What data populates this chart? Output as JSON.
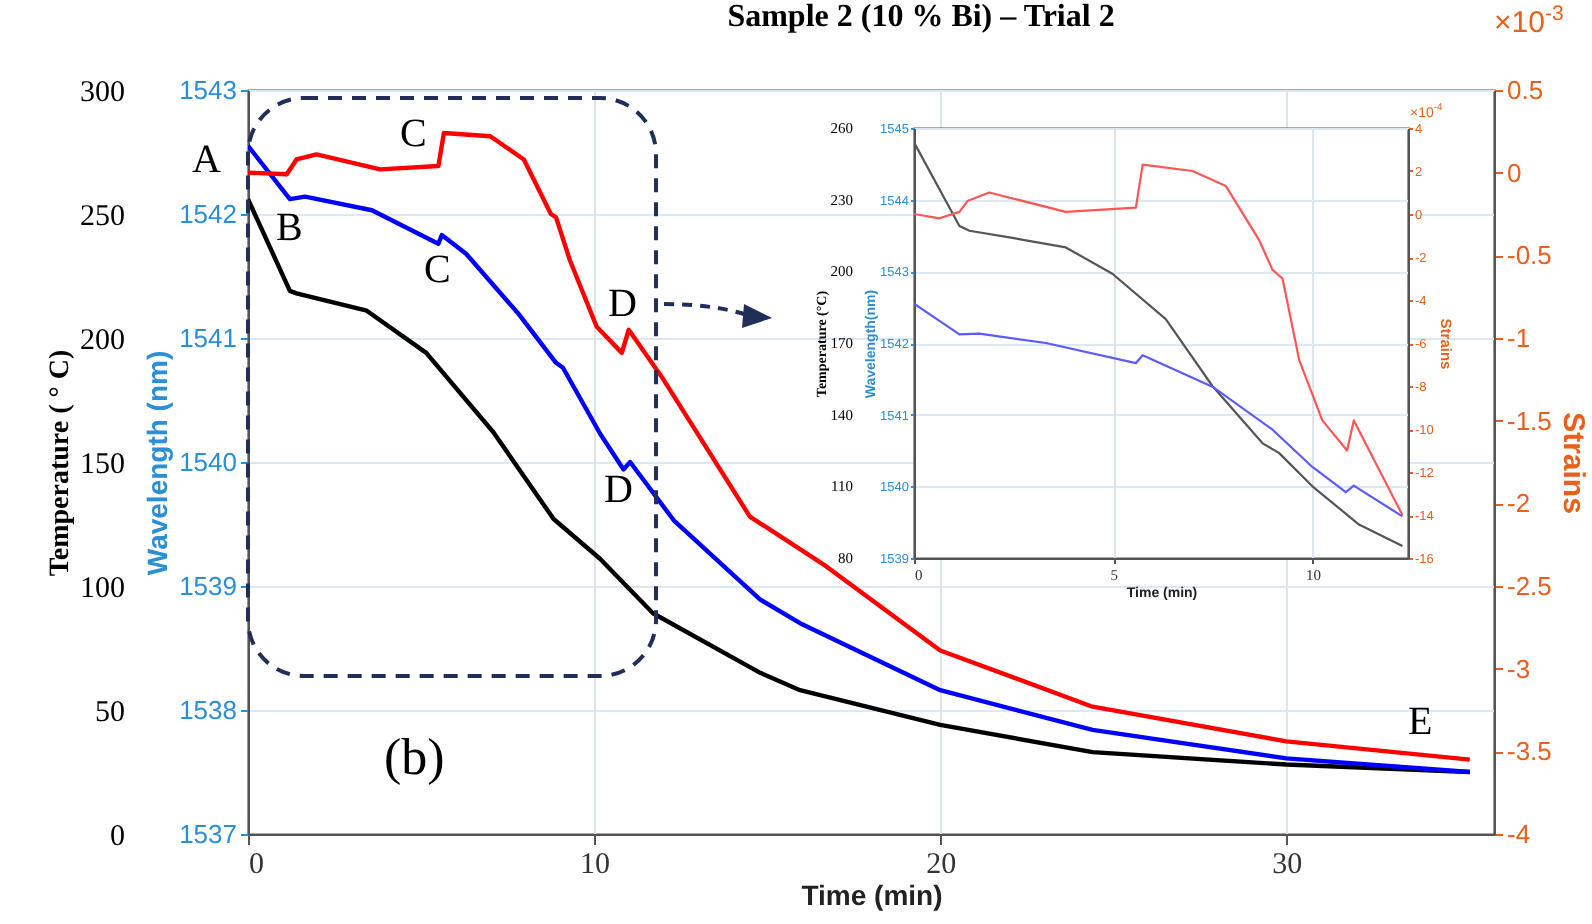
{
  "chart_data": [
    {
      "type": "line",
      "title": "Sample 2 (10 % Bi) – Trial 2",
      "xlabel": "Time (min)",
      "ylabel": "Temperature ( ° C)",
      "y2label": "Wavelength (nm)",
      "y3label": "Strains",
      "xlim": [
        0,
        36
      ],
      "xticks": [
        0,
        10,
        20,
        30
      ],
      "ylim": [
        0,
        300
      ],
      "yticks": [
        0,
        50,
        100,
        150,
        200,
        250,
        300
      ],
      "y2lim": [
        1537,
        1543
      ],
      "y2ticks": [
        1537,
        1538,
        1539,
        1540,
        1541,
        1542,
        1543
      ],
      "y3lim": [
        -4,
        0.5
      ],
      "y3ticks": [
        -4,
        -3.5,
        -3,
        -2.5,
        -2,
        -1.5,
        -1,
        -0.5,
        0,
        0.5
      ],
      "grid": true,
      "marker": "none",
      "line_style": "solid",
      "annotations": [
        "A",
        "B",
        "C",
        "C",
        "D",
        "D",
        "E",
        "(b)",
        "×10$^{-3}$"
      ],
      "series": [
        {
          "axis": "y",
          "color": "#000000",
          "x": [
            0,
            1.21,
            1.4,
            3.43,
            5.15,
            7.09,
            8.83,
            10.17,
            11.7,
            14.8,
            15.95,
            20,
            24.4,
            30,
            35.3
          ],
          "values": [
            256,
            219,
            218,
            211,
            194,
            162,
            127,
            111,
            89,
            65,
            58,
            44,
            33,
            28,
            25
          ]
        },
        {
          "axis": "y2",
          "color": "#0000ff",
          "x": [
            0,
            1.21,
            1.65,
            3.58,
            5.5,
            5.6,
            6.3,
            7.8,
            8.9,
            9.1,
            10.17,
            10.85,
            11.04,
            12.3,
            14.8,
            15.95,
            20,
            24.4,
            30,
            35.3
          ],
          "values": [
            1542.55,
            1542.12,
            1542.14,
            1542.03,
            1541.76,
            1541.83,
            1541.68,
            1541.2,
            1540.8,
            1540.76,
            1540.23,
            1539.94,
            1540.0,
            1539.53,
            1538.89,
            1538.7,
            1538.16,
            1537.84,
            1537.61,
            1537.5
          ]
        },
        {
          "axis": "y3",
          "color": "#ff0000",
          "x": [
            0,
            1.12,
            1.4,
            1.98,
            3.82,
            5.5,
            5.66,
            7.0,
            7.97,
            8.75,
            8.9,
            9.3,
            10.07,
            10.8,
            11.0,
            12.0,
            14.5,
            16.7,
            20,
            24.4,
            30,
            35.3
          ],
          "values": [
            0,
            -0.01,
            0.08,
            0.11,
            0.02,
            0.04,
            0.24,
            0.22,
            0.08,
            -0.25,
            -0.27,
            -0.53,
            -0.93,
            -1.09,
            -0.95,
            -1.25,
            -2.08,
            -2.38,
            -2.89,
            -3.23,
            -3.44,
            -3.55
          ]
        }
      ]
    },
    {
      "type": "line",
      "xlabel": "Time (min)",
      "ylabel": "Temperature (°C)",
      "y2label": "Wavelength(nm)",
      "y3label": "Strains",
      "xlim": [
        0,
        12.4
      ],
      "xticks": [
        0,
        5,
        10
      ],
      "ylim": [
        80,
        260
      ],
      "yticks": [
        80,
        110,
        140,
        170,
        200,
        230,
        260
      ],
      "y2lim": [
        1539,
        1545
      ],
      "y2ticks": [
        1539,
        1540,
        1541,
        1542,
        1543,
        1544,
        1545
      ],
      "y3lim": [
        -16,
        4
      ],
      "y3ticks": [
        -16,
        -14,
        -12,
        -10,
        -8,
        -6,
        -4,
        -2,
        0,
        2,
        4
      ],
      "grid": true,
      "marker": "none",
      "line_style": "solid",
      "annotations": [
        "×10$^{-4}$"
      ],
      "series": [
        {
          "axis": "y",
          "color": "#555555",
          "x": [
            0,
            1.14,
            1.39,
            2.47,
            3.81,
            4.98,
            6.32,
            7.49,
            8.75,
            9.16,
            10,
            11.17,
            12.26
          ],
          "values": [
            254,
            219,
            217,
            214,
            210,
            199,
            180,
            152,
            128,
            124,
            110,
            94,
            85
          ]
        },
        {
          "axis": "y2",
          "color": "#5a5aff",
          "x": [
            0,
            1.14,
            1.64,
            3.31,
            5.57,
            5.74,
            7.49,
            9.0,
            10,
            10.84,
            11.04,
            12.26
          ],
          "values": [
            1542.55,
            1542.12,
            1542.13,
            1542.0,
            1541.72,
            1541.83,
            1541.39,
            1540.79,
            1540.27,
            1539.92,
            1540.01,
            1539.58
          ]
        },
        {
          "axis": "y3",
          "color": "#ff5555",
          "x": [
            0,
            0.64,
            1.14,
            1.34,
            1.89,
            3.81,
            5.57,
            5.74,
            6.99,
            7.83,
            8.66,
            9.0,
            9.25,
            9.67,
            10.25,
            10.87,
            11.04,
            12.26
          ],
          "values": [
            0,
            -0.2,
            0.1,
            0.6,
            1,
            0.1,
            0.3,
            2.3,
            2,
            1.3,
            -1.2,
            -2.6,
            -3,
            -6.8,
            -9.6,
            -11,
            -9.6,
            -14
          ]
        }
      ]
    }
  ]
}
